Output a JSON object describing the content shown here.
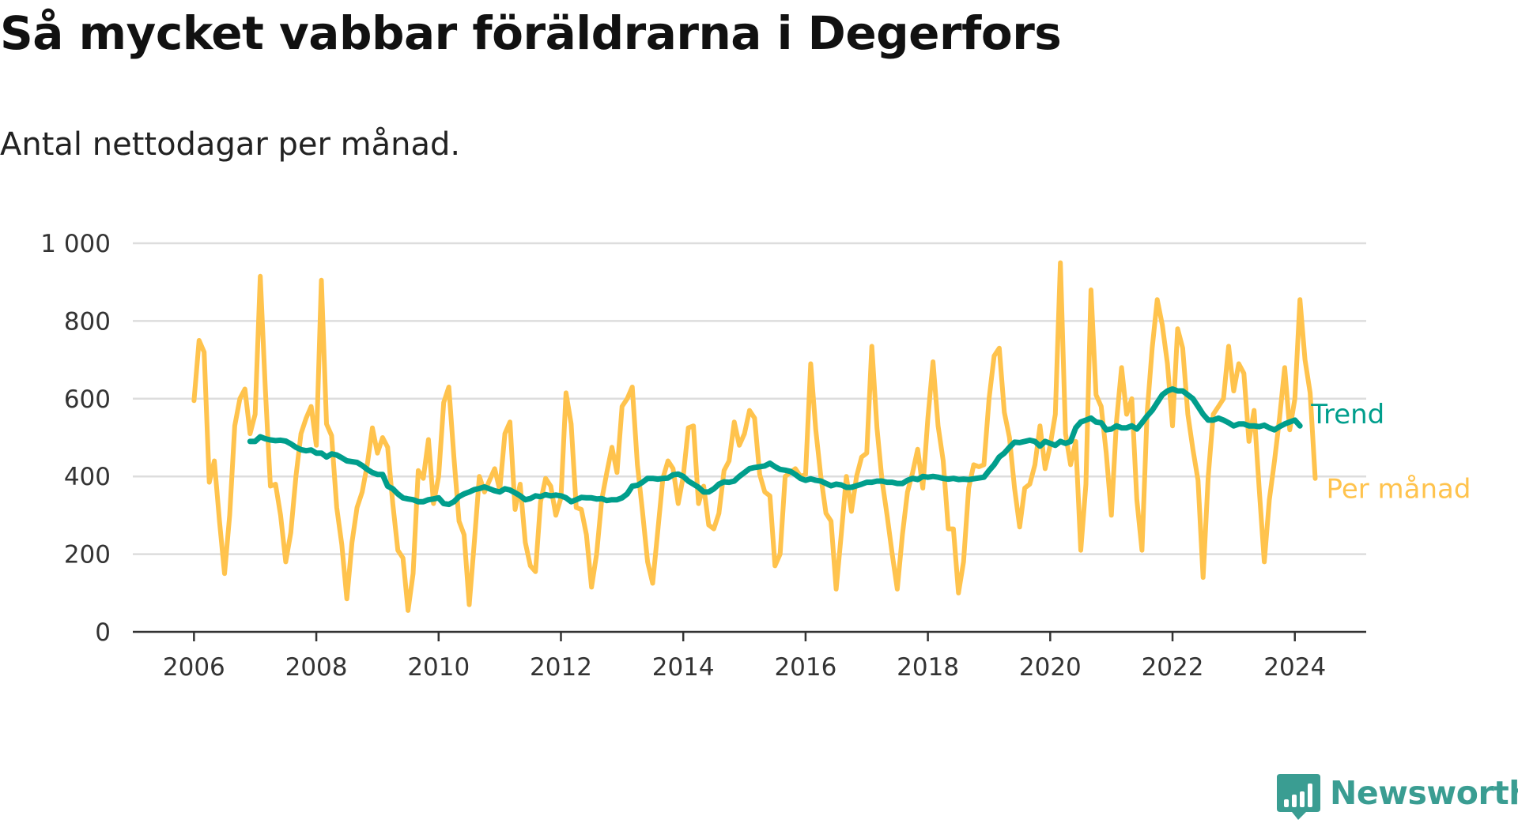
{
  "chart_data": {
    "type": "line",
    "title": "Så mycket vabbar föräldrarna i Degerfors",
    "subtitle": "Antal nettodagar per månad.",
    "xlabel": "",
    "ylabel": "",
    "x_start": "2006-01",
    "x_step": "month",
    "xlim": [
      "2005-01",
      "2025-03"
    ],
    "ylim": [
      0,
      1000
    ],
    "x_ticks": [
      "2006",
      "2008",
      "2010",
      "2012",
      "2014",
      "2016",
      "2018",
      "2020",
      "2022",
      "2024"
    ],
    "y_ticks": [
      {
        "value": 0,
        "label": "0"
      },
      {
        "value": 200,
        "label": "200"
      },
      {
        "value": 400,
        "label": "400"
      },
      {
        "value": 600,
        "label": "600"
      },
      {
        "value": 800,
        "label": "800"
      },
      {
        "value": 1000,
        "label": "1 000"
      }
    ],
    "grid": true,
    "legend": "direct labels at line ends",
    "series": [
      {
        "name": "Per månad",
        "color": "#FFC34D",
        "values": [
          595,
          750,
          720,
          385,
          440,
          285,
          150,
          300,
          530,
          600,
          625,
          510,
          560,
          915,
          625,
          375,
          380,
          300,
          180,
          255,
          400,
          510,
          550,
          580,
          480,
          905,
          535,
          505,
          320,
          225,
          85,
          230,
          320,
          360,
          430,
          525,
          460,
          500,
          475,
          330,
          210,
          190,
          55,
          150,
          415,
          395,
          495,
          330,
          400,
          590,
          630,
          450,
          285,
          250,
          70,
          230,
          400,
          360,
          390,
          420,
          365,
          510,
          540,
          315,
          380,
          230,
          170,
          155,
          335,
          395,
          375,
          300,
          345,
          615,
          535,
          320,
          315,
          250,
          115,
          200,
          340,
          410,
          475,
          410,
          580,
          600,
          630,
          430,
          310,
          180,
          125,
          260,
          395,
          440,
          420,
          330,
          400,
          525,
          530,
          330,
          375,
          275,
          265,
          305,
          415,
          440,
          540,
          480,
          510,
          570,
          550,
          405,
          360,
          350,
          170,
          200,
          400,
          410,
          420,
          400,
          405,
          690,
          520,
          400,
          305,
          285,
          110,
          250,
          400,
          310,
          400,
          450,
          460,
          735,
          525,
          390,
          300,
          200,
          110,
          250,
          360,
          410,
          470,
          370,
          550,
          695,
          530,
          440,
          265,
          265,
          100,
          180,
          370,
          430,
          425,
          430,
          600,
          710,
          730,
          565,
          500,
          370,
          270,
          370,
          380,
          430,
          530,
          420,
          480,
          560,
          950,
          510,
          430,
          490,
          210,
          380,
          880,
          610,
          580,
          460,
          300,
          540,
          680,
          560,
          600,
          340,
          210,
          560,
          730,
          855,
          790,
          690,
          530,
          780,
          730,
          560,
          470,
          390,
          140,
          400,
          560,
          580,
          600,
          735,
          620,
          690,
          665,
          490,
          570,
          370,
          180,
          340,
          440,
          550,
          680,
          520,
          600,
          855,
          700,
          615,
          395
        ]
      },
      {
        "name": "Trend",
        "color": "#009E8C",
        "x_start": "2006-12",
        "values": [
          490,
          490,
          502,
          497,
          494,
          492,
          493,
          491,
          484,
          475,
          469,
          466,
          468,
          460,
          460,
          450,
          458,
          455,
          448,
          440,
          438,
          436,
          428,
          418,
          410,
          405,
          405,
          375,
          368,
          355,
          345,
          342,
          340,
          335,
          335,
          340,
          342,
          345,
          330,
          328,
          335,
          348,
          355,
          360,
          366,
          369,
          373,
          368,
          363,
          360,
          368,
          365,
          358,
          350,
          340,
          343,
          350,
          348,
          353,
          350,
          352,
          350,
          345,
          335,
          340,
          346,
          345,
          345,
          342,
          343,
          338,
          340,
          340,
          345,
          355,
          375,
          377,
          385,
          395,
          395,
          393,
          395,
          396,
          404,
          406,
          400,
          388,
          380,
          372,
          360,
          360,
          368,
          380,
          386,
          385,
          388,
          400,
          410,
          420,
          423,
          425,
          427,
          434,
          425,
          418,
          416,
          413,
          405,
          395,
          390,
          394,
          390,
          388,
          382,
          376,
          380,
          378,
          372,
          372,
          376,
          380,
          385,
          385,
          388,
          388,
          385,
          385,
          382,
          382,
          390,
          395,
          392,
          400,
          398,
          400,
          398,
          395,
          393,
          395,
          392,
          393,
          392,
          394,
          396,
          398,
          415,
          430,
          450,
          460,
          475,
          488,
          487,
          490,
          493,
          490,
          478,
          490,
          485,
          480,
          490,
          485,
          490,
          525,
          540,
          545,
          550,
          540,
          538,
          520,
          522,
          530,
          525,
          525,
          530,
          522,
          538,
          555,
          570,
          590,
          610,
          620,
          625,
          620,
          620,
          610,
          600,
          580,
          560,
          545,
          545,
          550,
          545,
          538,
          530,
          535,
          535,
          530,
          530,
          528,
          532,
          525,
          520,
          528,
          535,
          540,
          545,
          530
        ]
      }
    ]
  },
  "brand": {
    "name": "Newsworthy",
    "color": "#3A9D92",
    "icon": "bar-chart-icon"
  }
}
